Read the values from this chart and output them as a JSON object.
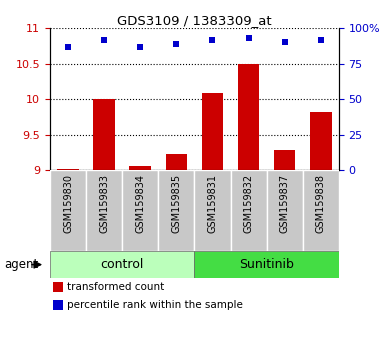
{
  "title": "GDS3109 / 1383309_at",
  "samples": [
    "GSM159830",
    "GSM159833",
    "GSM159834",
    "GSM159835",
    "GSM159831",
    "GSM159832",
    "GSM159837",
    "GSM159838"
  ],
  "red_values": [
    9.02,
    10.0,
    9.05,
    9.22,
    10.08,
    10.5,
    9.28,
    9.82
  ],
  "blue_values": [
    10.74,
    10.84,
    10.74,
    10.78,
    10.84,
    10.86,
    10.8,
    10.84
  ],
  "ylim_left": [
    9.0,
    11.0
  ],
  "ylim_right": [
    0,
    100
  ],
  "yticks_left": [
    9.0,
    9.5,
    10.0,
    10.5,
    11.0
  ],
  "ytick_labels_left": [
    "9",
    "9.5",
    "10",
    "10.5",
    "11"
  ],
  "yticks_right": [
    0,
    25,
    50,
    75,
    100
  ],
  "ytick_labels_right": [
    "0",
    "25",
    "50",
    "75",
    "100%"
  ],
  "control_label": "control",
  "sunitinib_label": "Sunitinib",
  "agent_label": "agent",
  "legend_red": "transformed count",
  "legend_blue": "percentile rank within the sample",
  "bar_color": "#cc0000",
  "dot_color": "#0000cc",
  "control_bg": "#bbffbb",
  "sunitinib_bg": "#44dd44",
  "sample_bg": "#c8c8c8",
  "baseline": 9.0,
  "bar_width": 0.6,
  "n_control": 4,
  "n_sunitinib": 4
}
